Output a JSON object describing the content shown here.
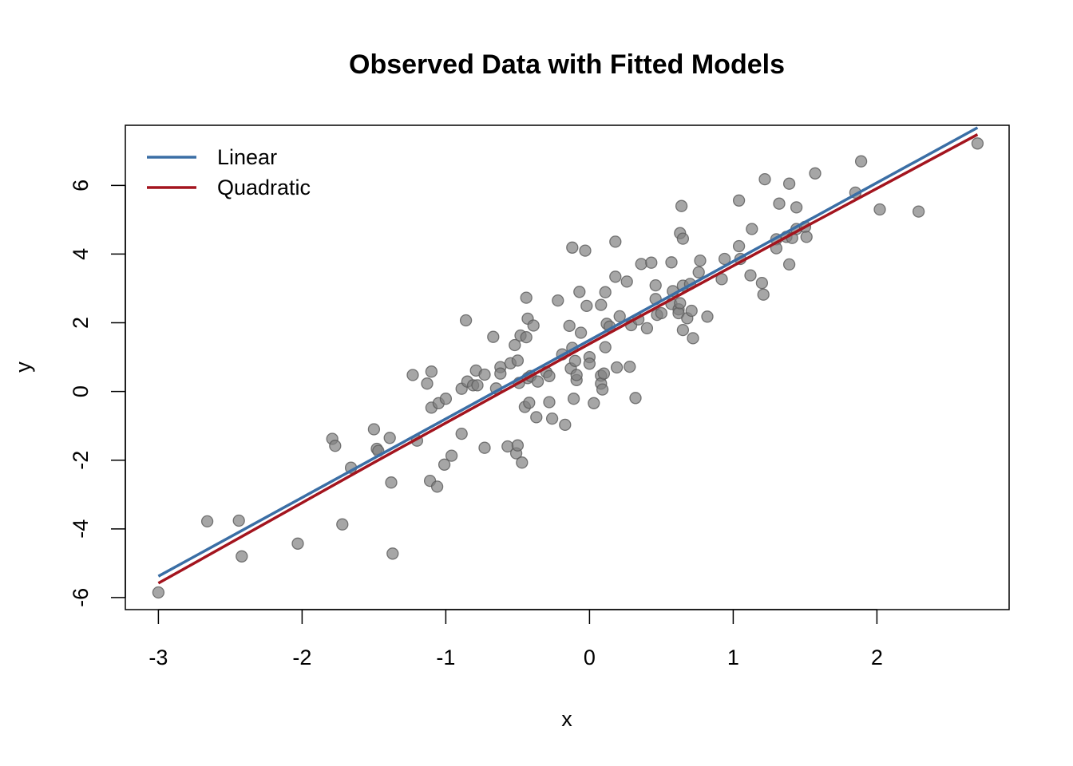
{
  "chart_data": {
    "type": "scatter",
    "title": "Observed Data with Fitted Models",
    "xlabel": "x",
    "ylabel": "y",
    "xlim": [
      -3.23,
      2.92
    ],
    "ylim": [
      -6.35,
      7.75
    ],
    "x_ticks": [
      -3,
      -2,
      -1,
      0,
      1,
      2
    ],
    "y_ticks": [
      -6,
      -4,
      -2,
      0,
      2,
      4,
      6
    ],
    "x_tick_labels": [
      "-3",
      "-2",
      "-1",
      "0",
      "1",
      "2"
    ],
    "y_tick_labels": [
      "-6",
      "-4",
      "-2",
      "0",
      "2",
      "4",
      "6"
    ],
    "grid": false,
    "legend_position": "top-left",
    "point_color": "#808080",
    "points": [
      [
        -3.0,
        -5.85
      ],
      [
        -2.66,
        -3.78
      ],
      [
        -2.44,
        -3.76
      ],
      [
        -2.42,
        -4.8
      ],
      [
        -2.03,
        -4.43
      ],
      [
        -1.79,
        -1.38
      ],
      [
        -1.77,
        -1.58
      ],
      [
        -1.72,
        -3.87
      ],
      [
        -1.66,
        -2.22
      ],
      [
        -1.5,
        -1.1
      ],
      [
        -1.48,
        -1.67
      ],
      [
        -1.47,
        -1.73
      ],
      [
        -1.39,
        -1.35
      ],
      [
        -1.38,
        -2.65
      ],
      [
        -1.37,
        -4.72
      ],
      [
        -1.23,
        0.48
      ],
      [
        -1.2,
        -1.43
      ],
      [
        -1.13,
        0.23
      ],
      [
        -1.11,
        -2.6
      ],
      [
        -1.1,
        0.58
      ],
      [
        -1.1,
        -0.47
      ],
      [
        -1.06,
        -2.77
      ],
      [
        -1.05,
        -0.34
      ],
      [
        -1.01,
        -2.13
      ],
      [
        -1.0,
        -0.21
      ],
      [
        -0.96,
        -1.87
      ],
      [
        -0.89,
        0.08
      ],
      [
        -0.89,
        -1.23
      ],
      [
        -0.86,
        2.07
      ],
      [
        -0.85,
        0.29
      ],
      [
        -0.81,
        0.18
      ],
      [
        -0.79,
        0.61
      ],
      [
        -0.78,
        0.18
      ],
      [
        -0.73,
        0.49
      ],
      [
        -0.73,
        -1.64
      ],
      [
        -0.67,
        1.59
      ],
      [
        -0.65,
        0.09
      ],
      [
        -0.62,
        0.71
      ],
      [
        -0.62,
        0.52
      ],
      [
        -0.57,
        -1.6
      ],
      [
        -0.55,
        0.82
      ],
      [
        -0.52,
        1.35
      ],
      [
        -0.51,
        -1.8
      ],
      [
        -0.5,
        -1.57
      ],
      [
        -0.5,
        0.9
      ],
      [
        -0.49,
        0.25
      ],
      [
        -0.48,
        1.63
      ],
      [
        -0.47,
        -2.07
      ],
      [
        -0.45,
        -0.45
      ],
      [
        -0.44,
        1.58
      ],
      [
        -0.44,
        2.73
      ],
      [
        -0.43,
        2.12
      ],
      [
        -0.43,
        0.39
      ],
      [
        -0.42,
        -0.33
      ],
      [
        -0.41,
        0.45
      ],
      [
        -0.39,
        1.92
      ],
      [
        -0.37,
        -0.75
      ],
      [
        -0.36,
        0.29
      ],
      [
        -0.3,
        0.56
      ],
      [
        -0.28,
        0.45
      ],
      [
        -0.28,
        -0.31
      ],
      [
        -0.26,
        -0.79
      ],
      [
        -0.22,
        2.65
      ],
      [
        -0.19,
        1.08
      ],
      [
        -0.17,
        -0.97
      ],
      [
        -0.14,
        1.91
      ],
      [
        -0.13,
        0.67
      ],
      [
        -0.12,
        1.27
      ],
      [
        -0.12,
        4.19
      ],
      [
        -0.11,
        -0.21
      ],
      [
        -0.1,
        0.89
      ],
      [
        -0.09,
        0.33
      ],
      [
        -0.09,
        0.48
      ],
      [
        -0.07,
        2.9
      ],
      [
        -0.06,
        1.71
      ],
      [
        -0.03,
        4.1
      ],
      [
        -0.02,
        2.49
      ],
      [
        0.0,
        1.0
      ],
      [
        0.0,
        0.81
      ],
      [
        0.03,
        -0.34
      ],
      [
        0.08,
        2.52
      ],
      [
        0.08,
        0.46
      ],
      [
        0.08,
        0.23
      ],
      [
        0.09,
        0.06
      ],
      [
        0.1,
        0.52
      ],
      [
        0.11,
        2.89
      ],
      [
        0.11,
        1.29
      ],
      [
        0.12,
        1.97
      ],
      [
        0.14,
        1.89
      ],
      [
        0.18,
        3.34
      ],
      [
        0.18,
        4.36
      ],
      [
        0.19,
        0.7
      ],
      [
        0.21,
        2.19
      ],
      [
        0.26,
        3.2
      ],
      [
        0.28,
        0.72
      ],
      [
        0.29,
        1.93
      ],
      [
        0.32,
        -0.19
      ],
      [
        0.34,
        2.1
      ],
      [
        0.36,
        3.71
      ],
      [
        0.4,
        1.84
      ],
      [
        0.43,
        3.75
      ],
      [
        0.46,
        3.09
      ],
      [
        0.46,
        2.69
      ],
      [
        0.47,
        2.23
      ],
      [
        0.5,
        2.28
      ],
      [
        0.57,
        3.76
      ],
      [
        0.57,
        2.55
      ],
      [
        0.58,
        2.92
      ],
      [
        0.62,
        2.39
      ],
      [
        0.62,
        2.28
      ],
      [
        0.63,
        2.57
      ],
      [
        0.63,
        4.61
      ],
      [
        0.64,
        5.4
      ],
      [
        0.65,
        4.45
      ],
      [
        0.65,
        3.08
      ],
      [
        0.65,
        1.79
      ],
      [
        0.68,
        2.13
      ],
      [
        0.7,
        3.13
      ],
      [
        0.71,
        2.35
      ],
      [
        0.72,
        1.55
      ],
      [
        0.76,
        3.47
      ],
      [
        0.77,
        3.81
      ],
      [
        0.82,
        2.18
      ],
      [
        0.92,
        3.27
      ],
      [
        0.94,
        3.86
      ],
      [
        1.04,
        5.56
      ],
      [
        1.04,
        4.23
      ],
      [
        1.05,
        3.86
      ],
      [
        1.12,
        3.38
      ],
      [
        1.13,
        4.73
      ],
      [
        1.2,
        3.16
      ],
      [
        1.21,
        2.82
      ],
      [
        1.22,
        6.18
      ],
      [
        1.3,
        4.43
      ],
      [
        1.3,
        4.17
      ],
      [
        1.32,
        5.47
      ],
      [
        1.37,
        4.5
      ],
      [
        1.39,
        6.05
      ],
      [
        1.39,
        3.7
      ],
      [
        1.41,
        4.47
      ],
      [
        1.44,
        5.36
      ],
      [
        1.44,
        4.73
      ],
      [
        1.5,
        4.79
      ],
      [
        1.51,
        4.5
      ],
      [
        1.57,
        6.35
      ],
      [
        1.85,
        5.79
      ],
      [
        1.89,
        6.7
      ],
      [
        2.02,
        5.3
      ],
      [
        2.29,
        5.24
      ],
      [
        2.7,
        7.22
      ]
    ],
    "series": [
      {
        "name": "Linear",
        "type": "line",
        "color": "#3a6ea5",
        "x": [
          -3.0,
          2.7
        ],
        "y": [
          -5.38,
          7.68
        ]
      },
      {
        "name": "Quadratic",
        "type": "line",
        "color": "#a3141e",
        "x": [
          -3.0,
          -1.5,
          0.0,
          1.5,
          2.7
        ],
        "y": [
          -5.58,
          -2.07,
          1.39,
          4.79,
          7.48
        ]
      }
    ],
    "legend": [
      {
        "label": "Linear",
        "color": "#3a6ea5"
      },
      {
        "label": "Quadratic",
        "color": "#a3141e"
      }
    ]
  }
}
